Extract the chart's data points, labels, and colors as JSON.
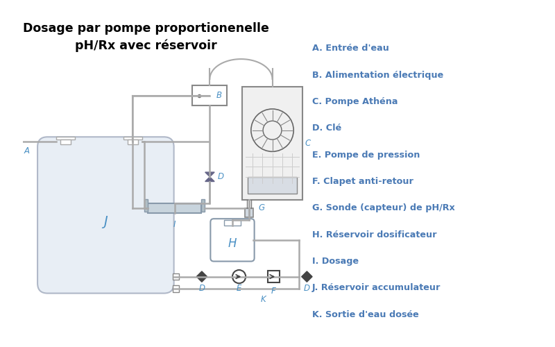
{
  "title_line1": "Dosage par pompe proportionenelle",
  "title_line2": "pH/Rx avec réservoir",
  "title_fontsize": 12.5,
  "bg_color": "#ffffff",
  "pipe_color": "#aaaaaa",
  "dark_color": "#444444",
  "pump_face": "#e8e8e8",
  "tank_face": "#e8eef5",
  "tank_edge": "#aaaaaa",
  "label_color": "#4a90c4",
  "legend_color": "#4a7ab5",
  "legend_items": [
    "A. Entrée d'eau",
    "B. Alimentation électrique",
    "C. Pompe Athéna",
    "D. Clé",
    "E. Pompe de pression",
    "F. Clapet anti-retour",
    "G. Sonde (capteur) de pH/Rx",
    "H. Réservoir dosificateur",
    "I. Dosage",
    "J. Réservoir accumulateur",
    "K. Sortie d'eau dosée"
  ],
  "legend_fontsize": 9.2,
  "label_fontsize": 8.5
}
